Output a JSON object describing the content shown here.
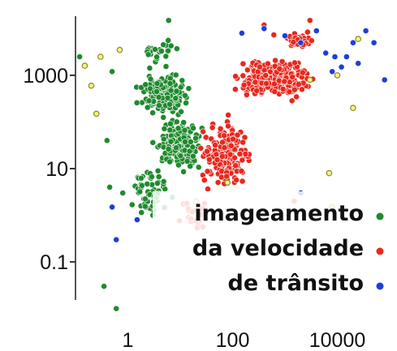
{
  "chart_data": {
    "type": "scatter",
    "title": "",
    "xlabel": "",
    "ylabel": "",
    "x_scale": "log",
    "y_scale": "log",
    "xlim": [
      0.1,
      100000
    ],
    "ylim": [
      0.005,
      20000
    ],
    "x_ticks": [
      {
        "value": 1,
        "label": "1"
      },
      {
        "value": 100,
        "label": "100"
      },
      {
        "value": 10000,
        "label": "10000"
      }
    ],
    "y_ticks": [
      {
        "value": 1000,
        "label": "1000"
      },
      {
        "value": 10,
        "label": "10"
      },
      {
        "value": 0.1,
        "label": "0.1"
      }
    ],
    "grid": false,
    "legend_position": "bottom-right",
    "legend": [
      {
        "label": "imageamento",
        "color": "#1f8a2e"
      },
      {
        "label": "da velocidade",
        "color": "#e8281e"
      },
      {
        "label": "de trânsito",
        "color": "#1d3fd8"
      }
    ],
    "series": [
      {
        "color": "#1f8a2e",
        "clusters": [
          {
            "x_range": [
              1,
              25
            ],
            "y_range": [
              100,
              1500
            ],
            "count": 180
          },
          {
            "x_range": [
              2,
              40
            ],
            "y_range": [
              5,
              200
            ],
            "count": 170
          },
          {
            "x_range": [
              0.8,
              10
            ],
            "y_range": [
              0.5,
              20
            ],
            "count": 60
          },
          {
            "x_range": [
              1,
              15
            ],
            "y_range": [
              1000,
              9000
            ],
            "count": 25
          }
        ],
        "points": [
          {
            "x": 0.12,
            "y": 2500
          },
          {
            "x": 0.4,
            "y": 40
          },
          {
            "x": 0.5,
            "y": 1200
          },
          {
            "x": 0.45,
            "y": 4
          },
          {
            "x": 0.6,
            "y": 0.01
          },
          {
            "x": 0.35,
            "y": 0.03
          },
          {
            "x": 6,
            "y": 15000
          },
          {
            "x": 3,
            "y": 1
          },
          {
            "x": 0.8,
            "y": 3
          }
        ]
      },
      {
        "color": "#e8281e",
        "clusters": [
          {
            "x_range": [
              60,
              6000
            ],
            "y_range": [
              200,
              4000
            ],
            "count": 290
          },
          {
            "x_range": [
              15,
              400
            ],
            "y_range": [
              2,
              200
            ],
            "count": 170
          },
          {
            "x_range": [
              400,
              8000
            ],
            "y_range": [
              3000,
              10000
            ],
            "count": 35
          },
          {
            "x_range": [
              5,
              50
            ],
            "y_range": [
              0.2,
              5
            ],
            "count": 20
          }
        ],
        "points": [
          {
            "x": 400,
            "y": 12000
          },
          {
            "x": 3000,
            "y": 15000
          },
          {
            "x": 1500,
            "y": 2
          }
        ]
      },
      {
        "color": "#1d3fd8",
        "clusters": [],
        "points": [
          {
            "x": 1000,
            "y": 7000
          },
          {
            "x": 2000,
            "y": 5000
          },
          {
            "x": 4000,
            "y": 9000
          },
          {
            "x": 6000,
            "y": 3000
          },
          {
            "x": 9000,
            "y": 2500
          },
          {
            "x": 12000,
            "y": 1500
          },
          {
            "x": 15000,
            "y": 2500
          },
          {
            "x": 20000,
            "y": 5000
          },
          {
            "x": 25000,
            "y": 1800
          },
          {
            "x": 35000,
            "y": 9000
          },
          {
            "x": 50000,
            "y": 5000
          },
          {
            "x": 80000,
            "y": 800
          },
          {
            "x": 400,
            "y": 10000
          },
          {
            "x": 150,
            "y": 8000
          },
          {
            "x": 8000,
            "y": 1200
          },
          {
            "x": 0.5,
            "y": 1.5
          },
          {
            "x": 0.6,
            "y": 0.3
          },
          {
            "x": 1.5,
            "y": 0.8
          },
          {
            "x": 2000,
            "y": 3
          }
        ]
      },
      {
        "color": "#e6e22a",
        "clusters": [],
        "points": [
          {
            "x": 0.15,
            "y": 1600
          },
          {
            "x": 0.2,
            "y": 600
          },
          {
            "x": 0.3,
            "y": 2500
          },
          {
            "x": 0.25,
            "y": 150
          },
          {
            "x": 0.7,
            "y": 3500
          },
          {
            "x": 20,
            "y": 2
          },
          {
            "x": 80,
            "y": 5
          },
          {
            "x": 7000,
            "y": 8
          },
          {
            "x": 8000,
            "y": 1.5
          },
          {
            "x": 20000,
            "y": 200
          },
          {
            "x": 25000,
            "y": 6000
          },
          {
            "x": 10000,
            "y": 1000
          },
          {
            "x": 3000,
            "y": 800
          }
        ]
      }
    ]
  }
}
